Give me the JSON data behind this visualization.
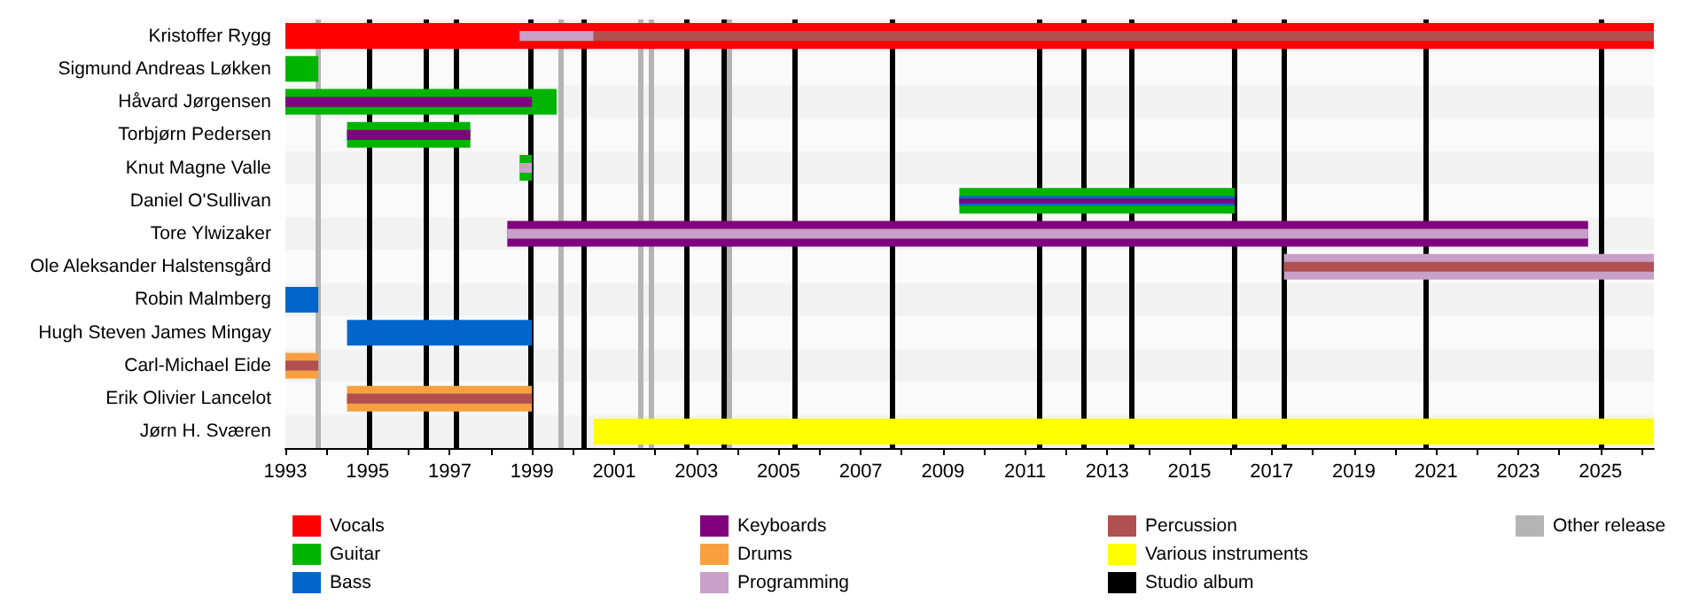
{
  "chart_data": {
    "type": "bar",
    "orientation": "horizontal",
    "legend": "bottom",
    "categories": [
      "Kristoffer Rygg",
      "Sigmund Andreas Løkken",
      "Håvard Jørgensen",
      "Torbjørn Pedersen",
      "Knut Magne Valle",
      "Daniel O'Sullivan",
      "Tore Ylwizaker",
      "Ole Aleksander Halstensgård",
      "Robin Malmberg",
      "Hugh Steven James Mingay",
      "Carl-Michael Eide",
      "Erik Olivier Lancelot",
      "Jørn H. Sværen"
    ],
    "series": [
      {
        "name": "Vocals",
        "color": "#ff0000",
        "base": [
          1993,
          null,
          null,
          null,
          null,
          null,
          null,
          null,
          null,
          null,
          null,
          null,
          null
        ],
        "values": [
          33.3,
          null,
          null,
          null,
          null,
          null,
          null,
          null,
          null,
          null,
          null,
          null,
          null
        ]
      },
      {
        "name": "Guitar",
        "color": "#00b400",
        "base": [
          null,
          1993,
          1993,
          1994.5,
          1998.7,
          2009.4,
          null,
          null,
          null,
          null,
          null,
          null,
          null
        ],
        "values": [
          null,
          0.8,
          6.6,
          3.0,
          0.3,
          6.7,
          null,
          null,
          null,
          null,
          null,
          null,
          null
        ]
      },
      {
        "name": "Bass",
        "color": "#0066cc",
        "base": [
          null,
          null,
          null,
          null,
          null,
          2009.4,
          null,
          null,
          1993,
          1994.5,
          null,
          null,
          null
        ],
        "values": [
          null,
          null,
          null,
          null,
          null,
          6.7,
          null,
          null,
          0.8,
          4.5,
          null,
          null,
          null
        ]
      },
      {
        "name": "Keyboards",
        "color": "#800080",
        "base": [
          null,
          null,
          1993,
          1994.5,
          null,
          2009.4,
          1998.4,
          null,
          null,
          null,
          null,
          null,
          null
        ],
        "values": [
          null,
          null,
          6.0,
          3.0,
          null,
          6.7,
          26.3,
          null,
          null,
          null,
          null,
          null,
          null
        ]
      },
      {
        "name": "Drums",
        "color": "#f8a040",
        "base": [
          null,
          null,
          null,
          null,
          null,
          null,
          null,
          null,
          null,
          null,
          1993,
          1994.5,
          null
        ],
        "values": [
          null,
          null,
          null,
          null,
          null,
          null,
          null,
          null,
          null,
          null,
          0.8,
          4.5,
          null
        ]
      },
      {
        "name": "Programming",
        "color": "#c8a0c8",
        "base": [
          1998.7,
          null,
          null,
          null,
          1998.7,
          null,
          1998.4,
          2017.3,
          null,
          null,
          null,
          null,
          null
        ],
        "values": [
          1.8,
          null,
          null,
          null,
          0.3,
          null,
          26.3,
          9.0,
          null,
          null,
          null,
          null,
          null
        ]
      },
      {
        "name": "Percussion",
        "color": "#b05050",
        "base": [
          2000.5,
          null,
          null,
          null,
          null,
          null,
          null,
          2017.3,
          null,
          null,
          1993,
          1994.5,
          null
        ],
        "values": [
          25.8,
          null,
          null,
          null,
          null,
          null,
          null,
          9.0,
          null,
          null,
          0.8,
          4.5,
          null
        ]
      },
      {
        "name": "Various instruments",
        "color": "#ffff00",
        "base": [
          null,
          null,
          null,
          null,
          null,
          null,
          null,
          null,
          null,
          null,
          null,
          null,
          2000.5
        ],
        "values": [
          null,
          null,
          null,
          null,
          null,
          null,
          null,
          null,
          null,
          null,
          null,
          null,
          25.8
        ]
      }
    ],
    "xlim": [
      1993,
      2026.3
    ],
    "xticks": [
      1993,
      {
        "value": 1994,
        "label": null
      },
      1995,
      {
        "value": 1996,
        "label": null
      },
      1997,
      {
        "value": 1998,
        "label": null
      },
      1999,
      {
        "value": 2000,
        "label": null
      },
      2001,
      {
        "value": 2002,
        "label": null
      },
      2003,
      {
        "value": 2004,
        "label": null
      },
      2005,
      {
        "value": 2006,
        "label": null
      },
      2007,
      {
        "value": 2008,
        "label": null
      },
      2009,
      {
        "value": 2010,
        "label": null
      },
      2011,
      {
        "value": 2012,
        "label": null
      },
      2013,
      {
        "value": 2014,
        "label": null
      },
      2015,
      {
        "value": 2016,
        "label": null
      },
      2017,
      {
        "value": 2018,
        "label": null
      },
      2019,
      {
        "value": 2020,
        "label": null
      },
      2021,
      {
        "value": 2022,
        "label": null
      },
      2023,
      {
        "value": 2024,
        "label": null
      },
      2025,
      {
        "value": 2026,
        "label": null
      }
    ],
    "ref_lines": [
      {
        "axis": "x",
        "value": 1995.05,
        "label": "Studio album",
        "color": "#000000"
      },
      {
        "axis": "x",
        "value": 1996.4,
        "color": "#000000"
      },
      {
        "axis": "x",
        "value": 1997.15,
        "color": "#000000"
      },
      {
        "axis": "x",
        "value": 1998.95,
        "color": "#000000"
      },
      {
        "axis": "x",
        "value": 2000.25,
        "color": "#000000"
      },
      {
        "axis": "x",
        "value": 2002.75,
        "color": "#000000"
      },
      {
        "axis": "x",
        "value": 2003.65,
        "color": "#000000"
      },
      {
        "axis": "x",
        "value": 2005.4,
        "color": "#000000"
      },
      {
        "axis": "x",
        "value": 2007.75,
        "color": "#000000"
      },
      {
        "axis": "x",
        "value": 2011.35,
        "color": "#000000"
      },
      {
        "axis": "x",
        "value": 2012.4,
        "color": "#000000"
      },
      {
        "axis": "x",
        "value": 2013.6,
        "color": "#000000"
      },
      {
        "axis": "x",
        "value": 2016.1,
        "color": "#000000"
      },
      {
        "axis": "x",
        "value": 2017.3,
        "color": "#000000"
      },
      {
        "axis": "x",
        "value": 2020.75,
        "color": "#000000"
      },
      {
        "axis": "x",
        "value": 2025,
        "color": "#000000"
      },
      {
        "axis": "x",
        "value": 1993.8,
        "label": "Other release",
        "color": "#b4b4b4"
      },
      {
        "axis": "x",
        "value": 1999.7,
        "color": "#b4b4b4"
      },
      {
        "axis": "x",
        "value": 2001.65,
        "color": "#b4b4b4"
      },
      {
        "axis": "x",
        "value": 2001.9,
        "color": "#b4b4b4"
      },
      {
        "axis": "x",
        "value": 2003.8,
        "color": "#b4b4b4"
      }
    ]
  }
}
